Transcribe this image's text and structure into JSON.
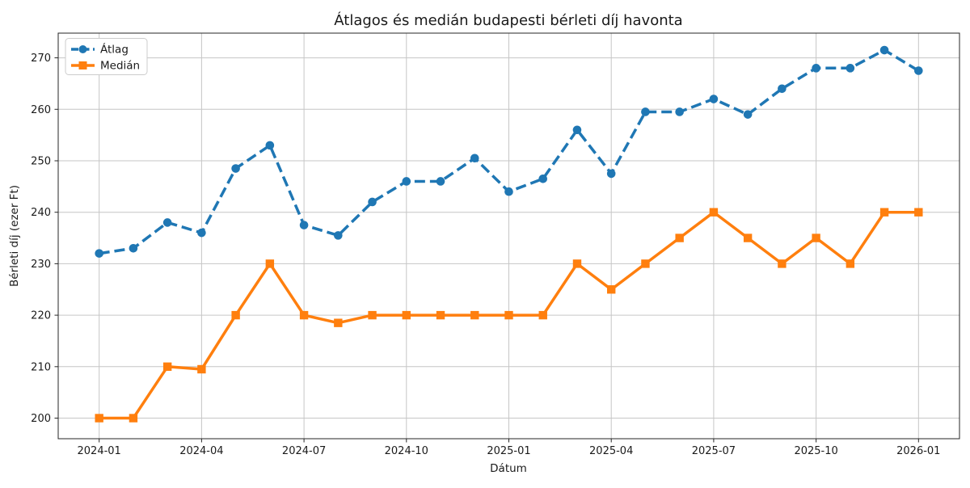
{
  "chart_data": {
    "type": "line",
    "title": "Átlagos és medián budapesti bérleti díj havonta",
    "xlabel": "Dátum",
    "ylabel": "Bérleti díj (ezer Ft)",
    "grid": true,
    "legend_position": "upper left",
    "categories": [
      "2024-01",
      "2024-02",
      "2024-03",
      "2024-04",
      "2024-05",
      "2024-06",
      "2024-07",
      "2024-08",
      "2024-09",
      "2024-10",
      "2024-11",
      "2024-12",
      "2025-01",
      "2025-02",
      "2025-03",
      "2025-04",
      "2025-05",
      "2025-06",
      "2025-07",
      "2025-08",
      "2025-09",
      "2025-10",
      "2025-11",
      "2025-12",
      "2026-01"
    ],
    "x_tick_labels": [
      "2024-01",
      "2024-04",
      "2024-07",
      "2024-10",
      "2025-01",
      "2025-04",
      "2025-07",
      "2025-10",
      "2026-01"
    ],
    "y_ticks": [
      200,
      210,
      220,
      230,
      240,
      250,
      260,
      270
    ],
    "ylim": [
      196,
      274.8
    ],
    "series": [
      {
        "name": "Átlag",
        "color": "#1f77b4",
        "line_style": "dashed",
        "marker": "circle",
        "values": [
          232,
          233,
          238,
          236,
          248.5,
          253,
          237.5,
          235.5,
          242,
          246,
          246,
          250.5,
          244,
          246.5,
          256,
          247.5,
          259.5,
          259.5,
          262,
          259,
          264,
          268,
          268,
          271.5,
          267.5
        ]
      },
      {
        "name": "Medián",
        "color": "#ff7f0e",
        "line_style": "solid",
        "marker": "square",
        "values": [
          200,
          200,
          210,
          209.5,
          220,
          230,
          220,
          218.5,
          220,
          220,
          220,
          220,
          220,
          220,
          230,
          225,
          230,
          235,
          240,
          235,
          230,
          235,
          230,
          240,
          240
        ]
      }
    ]
  }
}
